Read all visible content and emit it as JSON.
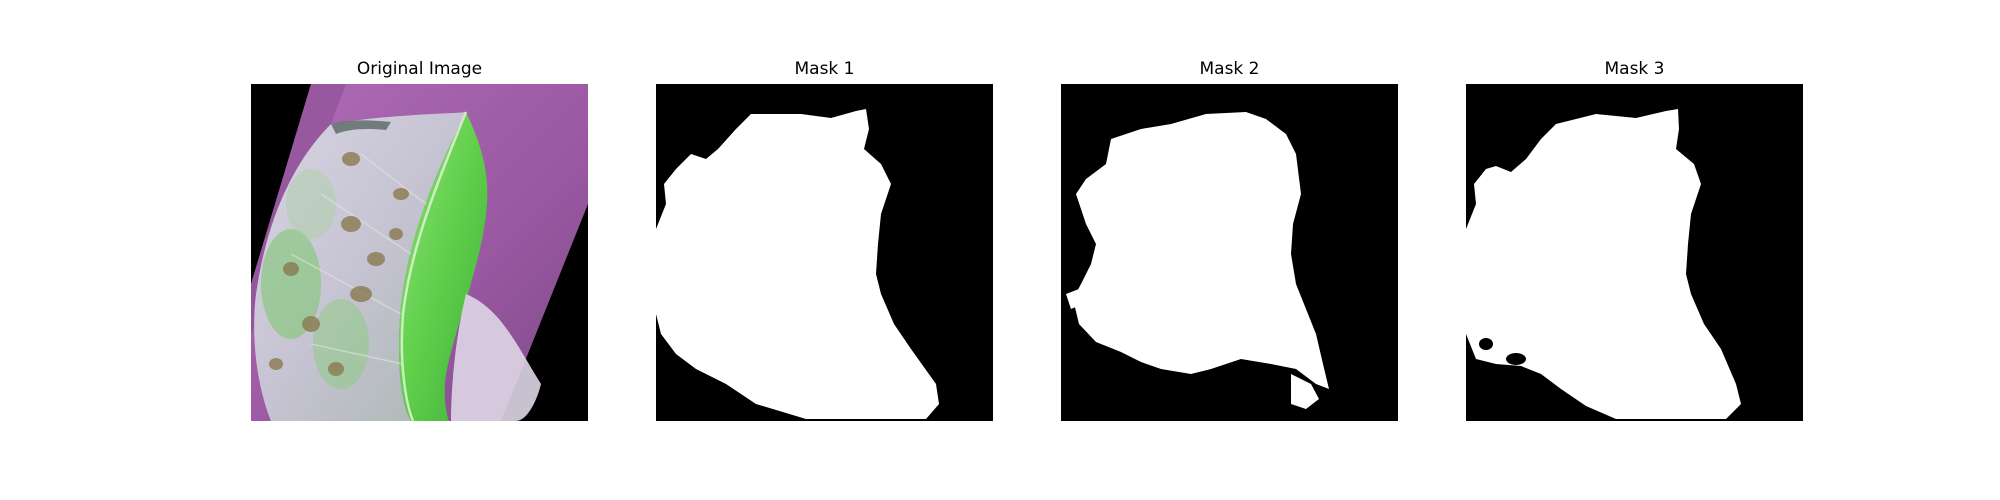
{
  "figure": {
    "panels": [
      {
        "title": "Original Image",
        "content": "leaf-photo"
      },
      {
        "title": "Mask 1",
        "content": "binary-mask"
      },
      {
        "title": "Mask 2",
        "content": "binary-mask"
      },
      {
        "title": "Mask 3",
        "content": "binary-mask"
      }
    ]
  },
  "colors": {
    "background": "#000000",
    "mask_foreground": "#ffffff",
    "leaf_purple": "#a35fa9",
    "leaf_pale": "#c9c4d8",
    "leaf_green": "#6fd25a",
    "spot_brown": "#8a7a4f"
  }
}
